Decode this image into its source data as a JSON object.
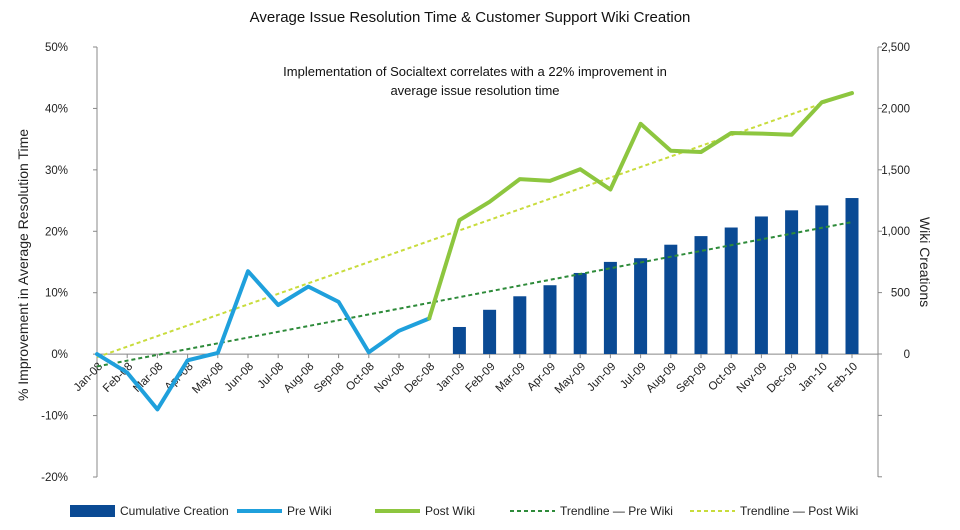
{
  "chart_data": {
    "type": "bar+line",
    "title": "Average Issue Resolution Time & Customer Support Wiki Creation",
    "annotation": [
      "Implementation of Socialtext correlates with a 22% improvement in",
      "average issue resolution time"
    ],
    "categories": [
      "Jan-08",
      "Feb-08",
      "Mar-08",
      "Apr-08",
      "May-08",
      "Jun-08",
      "Jul-08",
      "Aug-08",
      "Sep-08",
      "Oct-08",
      "Nov-08",
      "Dec-08",
      "Jan-09",
      "Feb-09",
      "Mar-09",
      "Apr-09",
      "May-09",
      "Jun-09",
      "Jul-09",
      "Aug-09",
      "Sep-09",
      "Oct-09",
      "Nov-09",
      "Dec-09",
      "Jan-10",
      "Feb-10"
    ],
    "ylabel_left": "% Improvement in Average Resolution  Time",
    "ylabel_right": "Wiki Creations",
    "ylim_left": [
      -20,
      50
    ],
    "ylim_right": [
      -1000,
      2500
    ],
    "yticks_left": [
      "-20%",
      "-10%",
      "0%",
      "10%",
      "20%",
      "30%",
      "40%",
      "50%"
    ],
    "yticks_right": [
      "0",
      "500",
      "1,000",
      "1,500",
      "2,000",
      "2,500"
    ],
    "series": [
      {
        "name": "Cumulative Creation",
        "kind": "bar",
        "axis": "right",
        "color": "#0a4a94",
        "values": [
          null,
          null,
          null,
          null,
          null,
          null,
          null,
          null,
          null,
          null,
          null,
          null,
          220,
          360,
          470,
          560,
          660,
          750,
          780,
          890,
          960,
          1030,
          1120,
          1170,
          1210,
          1270
        ]
      },
      {
        "name": "Pre Wiki",
        "kind": "line",
        "axis": "left",
        "color": "#1fa0dc",
        "values": [
          0,
          -3,
          -9,
          -1,
          0.2,
          13.5,
          8,
          11,
          8.5,
          0.3,
          3.8,
          5.8,
          null,
          null,
          null,
          null,
          null,
          null,
          null,
          null,
          null,
          null,
          null,
          null,
          null,
          null
        ]
      },
      {
        "name": "Post Wiki",
        "kind": "line",
        "axis": "left",
        "color": "#8dc63f",
        "values": [
          null,
          null,
          null,
          null,
          null,
          null,
          null,
          null,
          null,
          null,
          null,
          5.8,
          21.8,
          24.8,
          28.5,
          28.2,
          30.1,
          26.8,
          37.5,
          33.1,
          32.9,
          36,
          35.9,
          35.7,
          41,
          42.5
        ]
      },
      {
        "name": "Trendline — Pre Wiki",
        "kind": "trend",
        "axis": "left",
        "color": "#2e8b3a",
        "start": -2,
        "end": 21.5
      },
      {
        "name": "Trendline — Post Wiki",
        "kind": "trend",
        "axis": "left",
        "color": "#c8dc3c",
        "start": -0.5,
        "end": 42.5
      }
    ]
  }
}
